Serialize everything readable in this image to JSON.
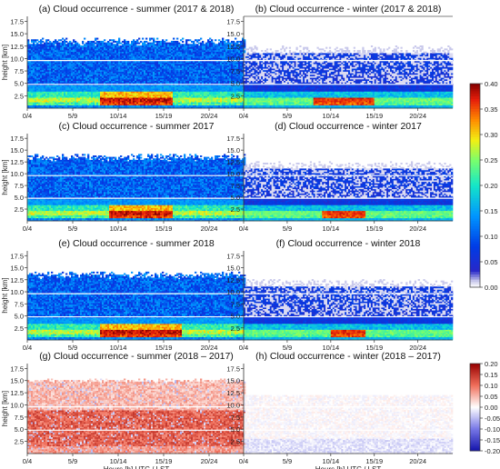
{
  "figure": {
    "ylabel": "height [km]",
    "xlabel": "Hours [h] UTC / LST"
  },
  "axes": {
    "x_tick_labels": [
      "0/4",
      "5/9",
      "10/14",
      "15/19",
      "20/24"
    ],
    "y_ticks": [
      2.5,
      5.0,
      7.5,
      10.0,
      12.5,
      15.0,
      17.5
    ],
    "ylim": [
      0,
      18.5
    ],
    "xlim": [
      0,
      24
    ]
  },
  "chart_data": [
    {
      "type": "heatmap",
      "title": "(a) Cloud occurrence - summer (2017 & 2018)",
      "colorscale": "occurrence",
      "pattern": "summer",
      "seed": 11,
      "reddish_hours": [
        8,
        16
      ]
    },
    {
      "type": "heatmap",
      "title": "(b) Cloud occurrence - winter (2017 & 2018)",
      "colorscale": "occurrence",
      "pattern": "winter",
      "seed": 23,
      "reddish_hours": [
        8,
        15
      ]
    },
    {
      "type": "heatmap",
      "title": "(c) Cloud occurrence - summer 2017",
      "colorscale": "occurrence",
      "pattern": "summer",
      "seed": 37,
      "reddish_hours": [
        9,
        16
      ]
    },
    {
      "type": "heatmap",
      "title": "(d) Cloud occurrence - winter 2017",
      "colorscale": "occurrence",
      "pattern": "winter",
      "seed": 41,
      "reddish_hours": [
        9,
        14
      ]
    },
    {
      "type": "heatmap",
      "title": "(e) Cloud occurrence - summer 2018",
      "colorscale": "occurrence",
      "pattern": "summer",
      "seed": 53,
      "reddish_hours": [
        8,
        17
      ]
    },
    {
      "type": "heatmap",
      "title": "(f) Cloud occurrence - winter 2018",
      "colorscale": "occurrence",
      "pattern": "winter",
      "seed": 67,
      "reddish_hours": [
        10,
        14
      ]
    },
    {
      "type": "heatmap",
      "title": "(g) Cloud occurrence - summer (2018 – 2017)",
      "colorscale": "difference",
      "pattern": "diff_summer",
      "seed": 79
    },
    {
      "type": "heatmap",
      "title": "(h) Cloud occurrence - winter (2018 – 2017)",
      "colorscale": "difference",
      "pattern": "diff_winter",
      "seed": 83
    }
  ],
  "colorbars": [
    {
      "name": "occurrence",
      "range": [
        0.0,
        0.4
      ],
      "tick_labels": [
        "0.40",
        "0.35",
        "0.30",
        "0.25",
        "0.20",
        "0.15",
        "0.10",
        "0.05",
        "0.00"
      ]
    },
    {
      "name": "difference",
      "range": [
        -0.2,
        0.2
      ],
      "tick_labels": [
        "0.20",
        "0.15",
        "0.10",
        "0.05",
        "0.00",
        "-0.05",
        "-0.10",
        "-0.15",
        "-0.20"
      ]
    }
  ]
}
